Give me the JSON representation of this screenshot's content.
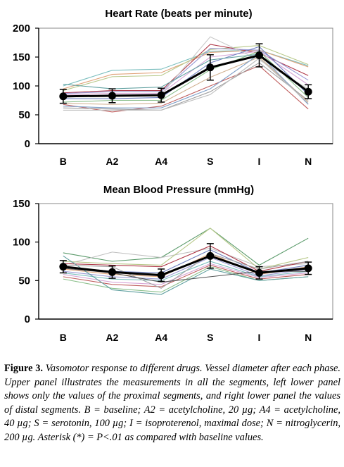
{
  "chart_data": [
    {
      "type": "line",
      "title": "Heart Rate (beats per minute)",
      "categories": [
        "B",
        "A2",
        "A4",
        "S",
        "I",
        "N"
      ],
      "ylim": [
        0,
        200
      ],
      "yticks": [
        0,
        50,
        100,
        150,
        200
      ],
      "grid": false,
      "mean": {
        "values": [
          82,
          83,
          84,
          132,
          153,
          90
        ],
        "errors": [
          12,
          12,
          12,
          22,
          20,
          12
        ]
      },
      "series": [
        {
          "values": [
            100,
            127,
            129,
            160,
            162,
            135
          ],
          "color": "#7cbfbf"
        },
        {
          "values": [
            95,
            120,
            123,
            158,
            162,
            133
          ],
          "color": "#e0a37a"
        },
        {
          "values": [
            92,
            116,
            118,
            163,
            170,
            137
          ],
          "color": "#b8c98a"
        },
        {
          "values": [
            88,
            92,
            92,
            172,
            157,
            118
          ],
          "color": "#b03a4a"
        },
        {
          "values": [
            87,
            90,
            90,
            165,
            162,
            110
          ],
          "color": "#9a9ad6"
        },
        {
          "values": [
            85,
            87,
            87,
            150,
            160,
            102
          ],
          "color": "#d7a6d7"
        },
        {
          "values": [
            80,
            85,
            85,
            185,
            145,
            95
          ],
          "color": "#c8c8c8"
        },
        {
          "values": [
            78,
            78,
            80,
            140,
            168,
            85
          ],
          "color": "#7080c0"
        },
        {
          "values": [
            72,
            75,
            75,
            128,
            160,
            80
          ],
          "color": "#8cc08c"
        },
        {
          "values": [
            70,
            68,
            70,
            115,
            150,
            72
          ],
          "color": "#d0b090"
        },
        {
          "values": [
            68,
            55,
            65,
            100,
            135,
            60
          ],
          "color": "#c06060"
        },
        {
          "values": [
            65,
            62,
            62,
            95,
            155,
            68
          ],
          "color": "#80a0c8"
        },
        {
          "values": [
            62,
            60,
            58,
            90,
            140,
            75
          ],
          "color": "#a0a0a0"
        },
        {
          "values": [
            58,
            58,
            58,
            85,
            148,
            70
          ],
          "color": "#bdbdbd"
        },
        {
          "values": [
            103,
            95,
            98,
            145,
            155,
            88
          ],
          "color": "#60a0a0"
        }
      ]
    },
    {
      "type": "line",
      "title": "Mean Blood Pressure (mmHg)",
      "categories": [
        "B",
        "A2",
        "A4",
        "S",
        "I",
        "N"
      ],
      "ylim": [
        0,
        150
      ],
      "yticks": [
        0,
        50,
        100,
        150
      ],
      "grid": false,
      "mean": {
        "values": [
          68,
          61,
          57,
          82,
          60,
          66
        ],
        "errors": [
          8,
          8,
          8,
          16,
          8,
          8
        ]
      },
      "series": [
        {
          "values": [
            86,
            75,
            80,
            118,
            70,
            105
          ],
          "color": "#5a9a6a"
        },
        {
          "values": [
            70,
            87,
            80,
            92,
            68,
            72
          ],
          "color": "#c0c0c0"
        },
        {
          "values": [
            75,
            72,
            70,
            118,
            65,
            80
          ],
          "color": "#b8c98a"
        },
        {
          "values": [
            72,
            70,
            68,
            95,
            62,
            75
          ],
          "color": "#b03a4a"
        },
        {
          "values": [
            68,
            62,
            60,
            90,
            60,
            70
          ],
          "color": "#7080c0"
        },
        {
          "values": [
            65,
            58,
            55,
            85,
            58,
            68
          ],
          "color": "#e0a37a"
        },
        {
          "values": [
            62,
            55,
            52,
            80,
            56,
            65
          ],
          "color": "#9a9ad6"
        },
        {
          "values": [
            60,
            52,
            50,
            75,
            55,
            62
          ],
          "color": "#7cbfbf"
        },
        {
          "values": [
            58,
            48,
            45,
            72,
            54,
            60
          ],
          "color": "#d7a6d7"
        },
        {
          "values": [
            55,
            45,
            42,
            70,
            52,
            58
          ],
          "color": "#c06060"
        },
        {
          "values": [
            52,
            40,
            35,
            68,
            50,
            55
          ],
          "color": "#8cc08c"
        },
        {
          "values": [
            82,
            38,
            32,
            65,
            50,
            55
          ],
          "color": "#60a0a0"
        },
        {
          "values": [
            70,
            68,
            40,
            85,
            65,
            75
          ],
          "color": "#a0a0a0"
        },
        {
          "values": [
            66,
            60,
            48,
            55,
            62,
            62
          ],
          "color": "#555555"
        }
      ]
    }
  ],
  "caption": {
    "lead": "Figure 3.",
    "body": "Vasomotor response to different drugs. Vessel diameter after each phase. Upper panel illustrates the measurements in all the segments, left lower panel shows only the values of the proximal segments, and right lower panel the values of distal segments. B = baseline; A2 = acetylcholine, 20 µg; A4 = acetylcholine, 40 µg; S = serotonin, 100 µg; I = isoproterenol, maximal dose; N = nitroglycerin, 200 µg. Asterisk (*) = P<.01 as compared with baseline values."
  }
}
